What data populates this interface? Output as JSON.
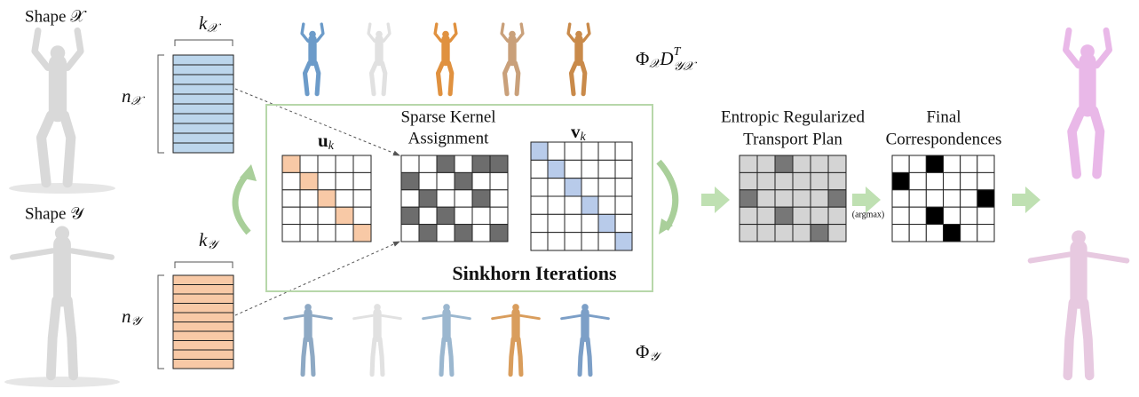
{
  "shape_x_label": "Shape 𝒳",
  "shape_y_label": "Shape 𝒴",
  "k_x": {
    "base": "k",
    "sub": "𝒳"
  },
  "n_x": {
    "base": "n",
    "sub": "𝒳"
  },
  "k_y": {
    "base": "k",
    "sub": "𝒴"
  },
  "n_y": {
    "base": "n",
    "sub": "𝒴"
  },
  "phi_x_label": {
    "phi": "Φ",
    "phi_sub": "𝒳",
    "d": "D",
    "d_sup": "T",
    "d_sub": "𝒴𝒳"
  },
  "phi_y_label": {
    "phi": "Φ",
    "phi_sub": "𝒴"
  },
  "u_label": {
    "base": "u",
    "sub": "k"
  },
  "v_label": {
    "base": "v",
    "sub": "k"
  },
  "kernel_label": [
    "Sparse Kernel",
    "Assignment"
  ],
  "sinkhorn_label": "Sinkhorn Iterations",
  "transport_label": [
    "Entropic Regularized",
    "Transport Plan"
  ],
  "final_label": [
    "Final",
    "Correspondences"
  ],
  "argmax_label": "(argmax)"
}
